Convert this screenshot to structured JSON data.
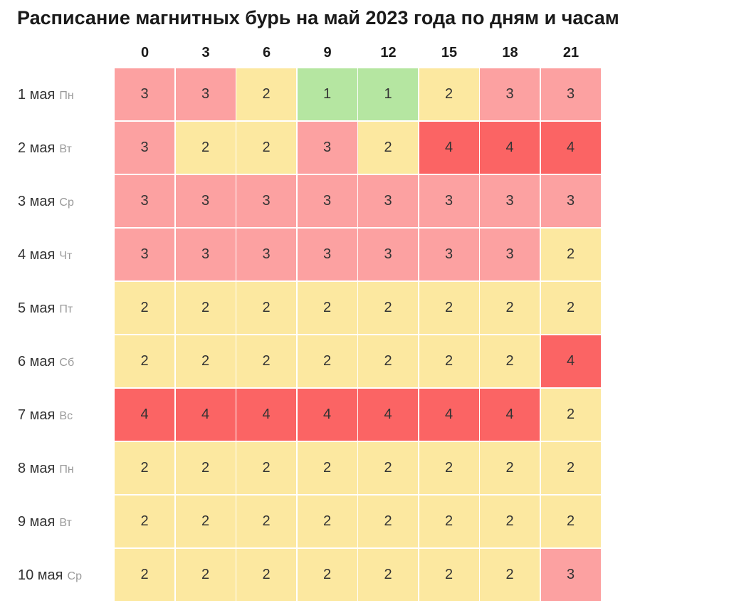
{
  "title": "Расписание магнитных бурь на май 2023 года по дням и часам",
  "colors": {
    "1": "#b5e6a1",
    "2": "#fce8a0",
    "3": "#fca1a1",
    "4": "#fb6464"
  },
  "chart_data": {
    "type": "heatmap",
    "title": "Расписание магнитных бурь на май 2023 года по дням и часам",
    "x": [
      "0",
      "3",
      "6",
      "9",
      "12",
      "15",
      "18",
      "21"
    ],
    "rows": [
      {
        "date": "1 мая",
        "weekday": "Пн",
        "values": [
          3,
          3,
          2,
          1,
          1,
          2,
          3,
          3
        ]
      },
      {
        "date": "2 мая",
        "weekday": "Вт",
        "values": [
          3,
          2,
          2,
          3,
          2,
          4,
          4,
          4
        ]
      },
      {
        "date": "3 мая",
        "weekday": "Ср",
        "values": [
          3,
          3,
          3,
          3,
          3,
          3,
          3,
          3
        ]
      },
      {
        "date": "4 мая",
        "weekday": "Чт",
        "values": [
          3,
          3,
          3,
          3,
          3,
          3,
          3,
          2
        ]
      },
      {
        "date": "5 мая",
        "weekday": "Пт",
        "values": [
          2,
          2,
          2,
          2,
          2,
          2,
          2,
          2
        ]
      },
      {
        "date": "6 мая",
        "weekday": "Сб",
        "values": [
          2,
          2,
          2,
          2,
          2,
          2,
          2,
          4
        ]
      },
      {
        "date": "7 мая",
        "weekday": "Вс",
        "values": [
          4,
          4,
          4,
          4,
          4,
          4,
          4,
          2
        ]
      },
      {
        "date": "8 мая",
        "weekday": "Пн",
        "values": [
          2,
          2,
          2,
          2,
          2,
          2,
          2,
          2
        ]
      },
      {
        "date": "9 мая",
        "weekday": "Вт",
        "values": [
          2,
          2,
          2,
          2,
          2,
          2,
          2,
          2
        ]
      },
      {
        "date": "10 мая",
        "weekday": "Ср",
        "values": [
          2,
          2,
          2,
          2,
          2,
          2,
          2,
          3
        ]
      }
    ]
  }
}
